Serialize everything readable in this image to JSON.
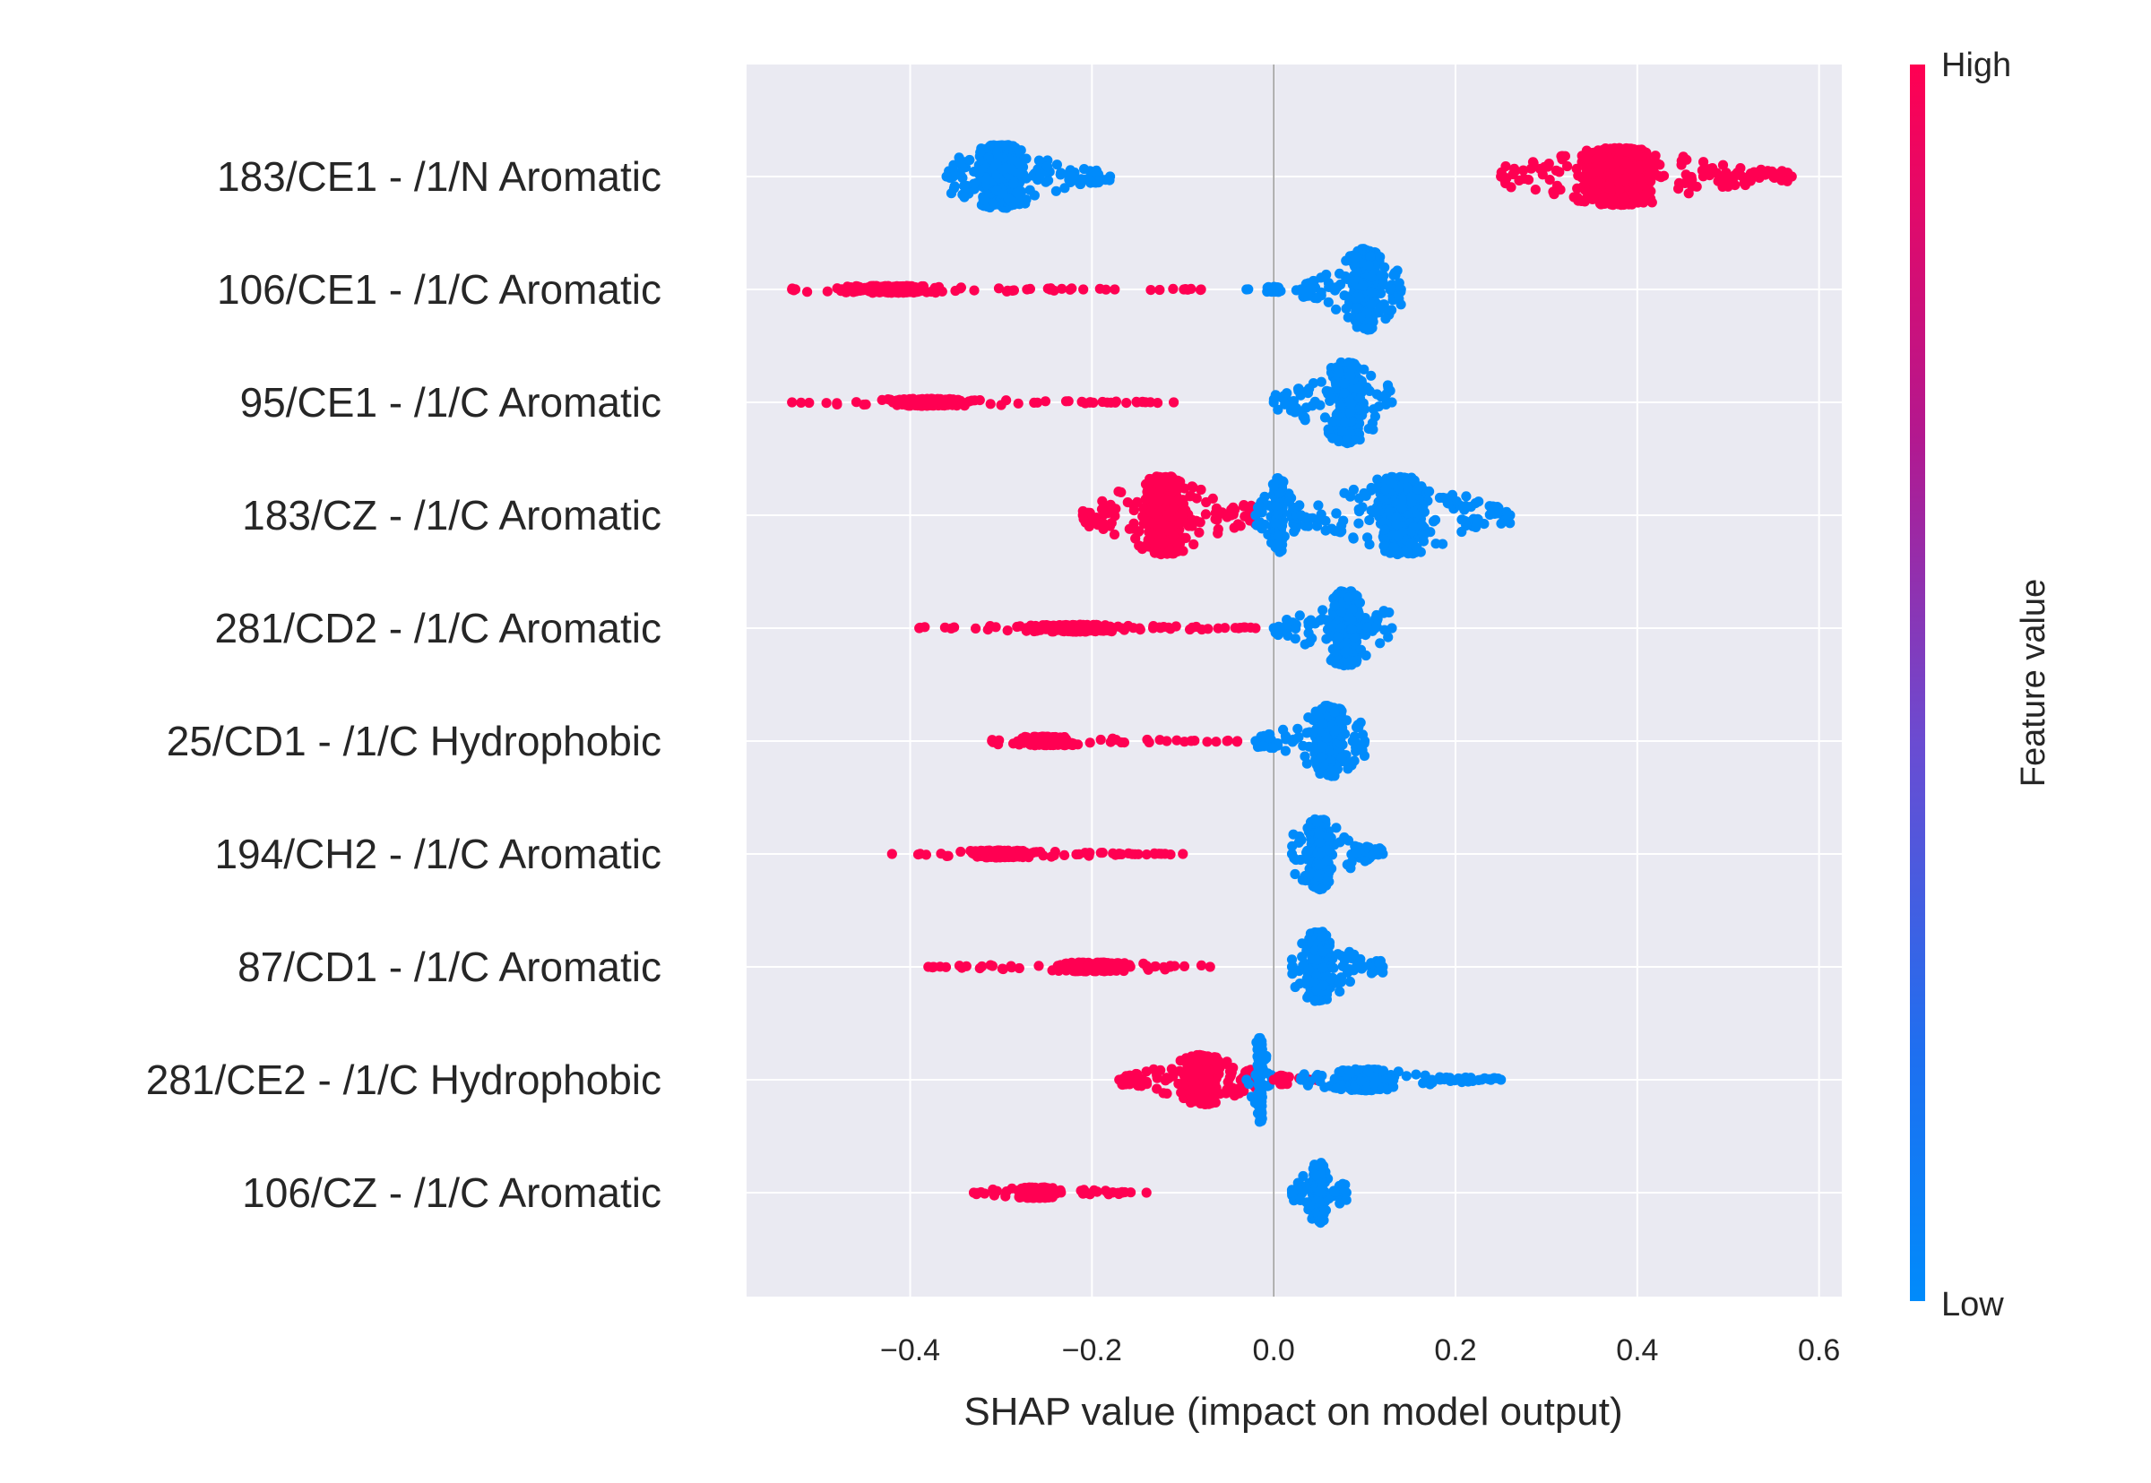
{
  "chart_data": {
    "type": "scatter",
    "subtype": "shap-beeswarm-summary",
    "title": "",
    "xlabel": "SHAP value (impact on model output)",
    "ylabel": "",
    "xlim": [
      -0.58,
      0.625
    ],
    "x_ticks": [
      -0.4,
      -0.2,
      0.0,
      0.2,
      0.4,
      0.6
    ],
    "x_tick_labels": [
      "−0.4",
      "−0.2",
      "0.0",
      "0.2",
      "0.4",
      "0.6"
    ],
    "grid": true,
    "zero_line": true,
    "colors": {
      "high": "#ff0052",
      "low": "#008bfb",
      "background": "#eaeaf2",
      "grid": "#ffffff"
    },
    "colorbar": {
      "label": "Feature value",
      "high_label": "High",
      "low_label": "Low"
    },
    "features": [
      {
        "name": "183/CE1 - /1/N Aromatic",
        "clusters": [
          {
            "color": "low",
            "min": -0.36,
            "max": -0.18,
            "peak": -0.3,
            "count": 620,
            "max_halfheight": 36
          },
          {
            "color": "high",
            "min": 0.25,
            "max": 0.57,
            "peak": 0.38,
            "count": 700,
            "max_halfheight": 32
          }
        ]
      },
      {
        "name": "106/CE1 - /1/C Aromatic",
        "clusters": [
          {
            "color": "high",
            "min": -0.53,
            "max": -0.08,
            "peak": -0.42,
            "count": 260,
            "max_halfheight": 4
          },
          {
            "color": "low",
            "min": -0.03,
            "max": 0.04,
            "peak": 0.0,
            "count": 30,
            "max_halfheight": 3
          },
          {
            "color": "low",
            "min": 0.03,
            "max": 0.14,
            "peak": 0.1,
            "count": 360,
            "max_halfheight": 46
          }
        ]
      },
      {
        "name": "95/CE1 - /1/C Aromatic",
        "clusters": [
          {
            "color": "high",
            "min": -0.53,
            "max": -0.11,
            "peak": -0.38,
            "count": 240,
            "max_halfheight": 4
          },
          {
            "color": "low",
            "min": 0.0,
            "max": 0.13,
            "peak": 0.08,
            "count": 380,
            "max_halfheight": 46
          }
        ]
      },
      {
        "name": "183/CZ - /1/C Aromatic",
        "clusters": [
          {
            "color": "high",
            "min": -0.21,
            "max": -0.02,
            "peak": -0.12,
            "count": 520,
            "max_halfheight": 44
          },
          {
            "color": "low",
            "min": -0.02,
            "max": 0.03,
            "peak": 0.005,
            "count": 200,
            "max_halfheight": 42
          },
          {
            "color": "low",
            "min": 0.03,
            "max": 0.26,
            "peak": 0.14,
            "count": 520,
            "max_halfheight": 44
          }
        ]
      },
      {
        "name": "281/CD2 - /1/C Aromatic",
        "clusters": [
          {
            "color": "high",
            "min": -0.39,
            "max": -0.02,
            "peak": -0.22,
            "count": 250,
            "max_halfheight": 4
          },
          {
            "color": "low",
            "min": 0.0,
            "max": 0.13,
            "peak": 0.08,
            "count": 360,
            "max_halfheight": 42
          }
        ]
      },
      {
        "name": "25/CD1 - /1/C Hydrophobic",
        "clusters": [
          {
            "color": "high",
            "min": -0.31,
            "max": -0.04,
            "peak": -0.25,
            "count": 210,
            "max_halfheight": 5
          },
          {
            "color": "low",
            "min": -0.02,
            "max": 0.1,
            "peak": 0.06,
            "count": 300,
            "max_halfheight": 40
          }
        ]
      },
      {
        "name": "194/CH2 - /1/C Aromatic",
        "clusters": [
          {
            "color": "high",
            "min": -0.42,
            "max": -0.1,
            "peak": -0.3,
            "count": 240,
            "max_halfheight": 4
          },
          {
            "color": "low",
            "min": 0.02,
            "max": 0.12,
            "peak": 0.05,
            "count": 330,
            "max_halfheight": 40
          }
        ]
      },
      {
        "name": "87/CD1 - /1/C Aromatic",
        "clusters": [
          {
            "color": "high",
            "min": -0.38,
            "max": -0.07,
            "peak": -0.2,
            "count": 220,
            "max_halfheight": 5
          },
          {
            "color": "low",
            "min": 0.02,
            "max": 0.12,
            "peak": 0.05,
            "count": 320,
            "max_halfheight": 40
          }
        ]
      },
      {
        "name": "281/CE2 - /1/C Hydrophobic",
        "clusters": [
          {
            "color": "high",
            "min": -0.17,
            "max": -0.02,
            "peak": -0.08,
            "count": 440,
            "max_halfheight": 28
          },
          {
            "color": "low",
            "min": -0.03,
            "max": 0.0,
            "peak": -0.015,
            "count": 120,
            "max_halfheight": 48
          },
          {
            "color": "high",
            "min": 0.0,
            "max": 0.05,
            "peak": 0.01,
            "count": 60,
            "max_halfheight": 5
          },
          {
            "color": "low",
            "min": 0.03,
            "max": 0.25,
            "peak": 0.1,
            "count": 360,
            "max_halfheight": 12
          }
        ]
      },
      {
        "name": "106/CZ - /1/C Aromatic",
        "clusters": [
          {
            "color": "high",
            "min": -0.33,
            "max": -0.14,
            "peak": -0.26,
            "count": 200,
            "max_halfheight": 6
          },
          {
            "color": "low",
            "min": 0.02,
            "max": 0.08,
            "peak": 0.05,
            "count": 240,
            "max_halfheight": 34
          }
        ]
      }
    ]
  }
}
